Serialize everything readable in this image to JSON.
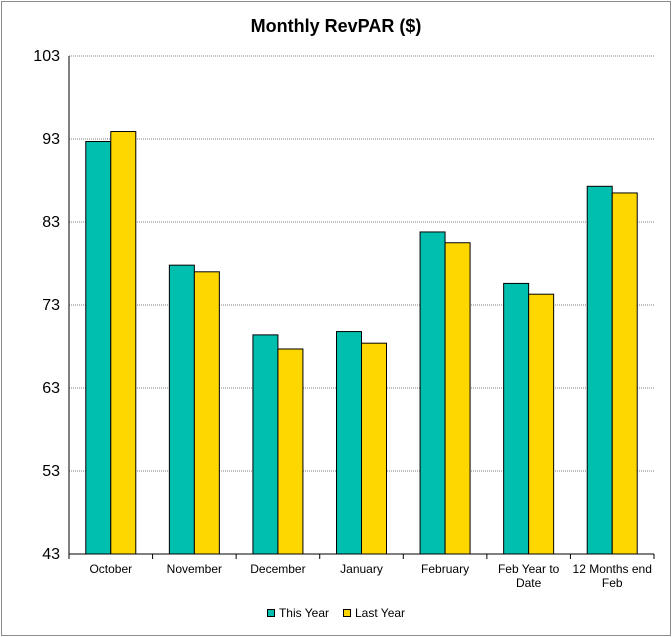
{
  "chart_data": {
    "type": "bar",
    "title": "Monthly RevPAR ($)",
    "xlabel": "",
    "ylabel": "",
    "ylim": [
      43,
      103
    ],
    "yticks": [
      43,
      53,
      63,
      73,
      83,
      93,
      103
    ],
    "grid": true,
    "legend_position": "bottom",
    "categories": [
      [
        "October"
      ],
      [
        "November"
      ],
      [
        "December"
      ],
      [
        "January"
      ],
      [
        "February"
      ],
      [
        "Feb Year to",
        "Date"
      ],
      [
        "12 Months end",
        "Feb"
      ]
    ],
    "series": [
      {
        "name": "This Year",
        "color": "#00BFAE",
        "values": [
          92.7,
          77.8,
          69.4,
          69.8,
          81.8,
          75.6,
          87.3
        ]
      },
      {
        "name": "Last Year",
        "color": "#FFD700",
        "values": [
          93.9,
          77.0,
          67.7,
          68.4,
          80.5,
          74.3,
          86.5
        ]
      }
    ]
  }
}
